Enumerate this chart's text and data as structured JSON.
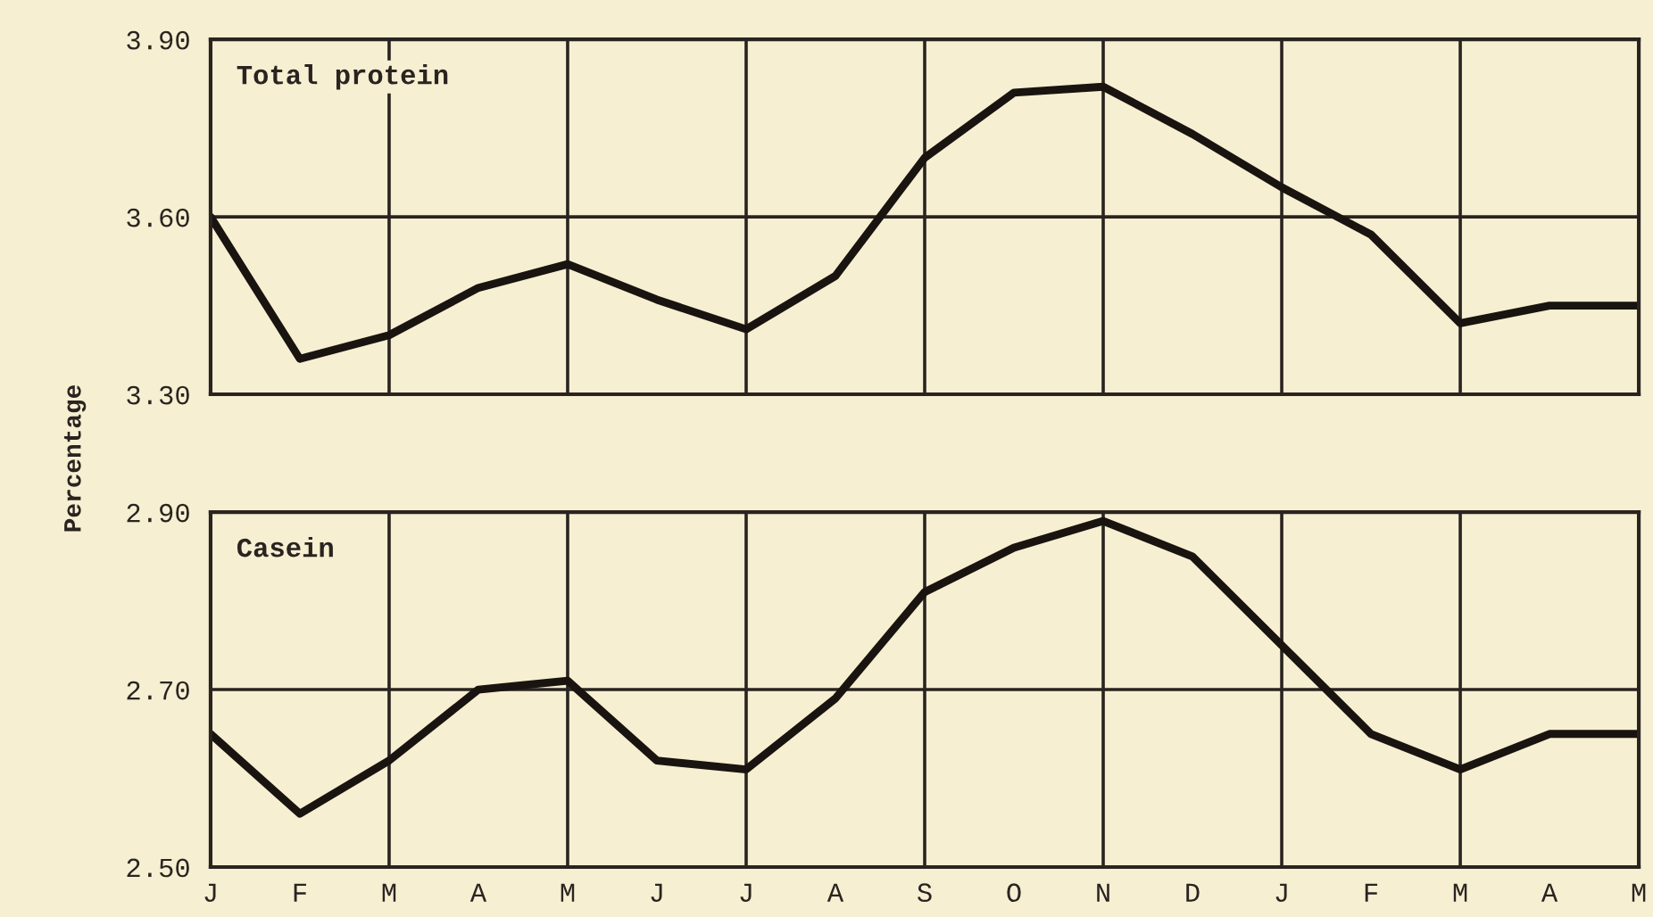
{
  "chart_data": [
    {
      "type": "line",
      "title": "Total protein",
      "categories": [
        null,
        null,
        null,
        null,
        null,
        null,
        null,
        null,
        null,
        null,
        null,
        null,
        null,
        null,
        null,
        null,
        null
      ],
      "series": [
        {
          "color": "#1a1410",
          "values": [
            3.6,
            3.36,
            3.4,
            3.48,
            3.52,
            3.46,
            3.41,
            3.5,
            3.7,
            3.81,
            3.82,
            3.74,
            3.65,
            3.57,
            3.42,
            3.45,
            3.45
          ]
        }
      ],
      "ylim": [
        3.3,
        3.9
      ],
      "yticks": [
        {
          "value": 3.3,
          "label": "3.30"
        },
        {
          "value": 3.6,
          "label": "3.60"
        },
        {
          "value": 3.9,
          "label": "3.90"
        }
      ],
      "grid": true,
      "tick_labels": "y",
      "marker": "none",
      "line_style": "solid"
    },
    {
      "type": "line",
      "title": "Casein",
      "ylabel": "Percentage",
      "categories": [
        "J",
        "F",
        "M",
        "A",
        "M",
        "J",
        "J",
        "A",
        "S",
        "O",
        "N",
        "D",
        "J",
        "F",
        "M",
        "A",
        "M"
      ],
      "series": [
        {
          "color": "#1a1410",
          "values": [
            2.65,
            2.56,
            2.62,
            2.7,
            2.71,
            2.62,
            2.61,
            2.69,
            2.81,
            2.86,
            2.89,
            2.85,
            2.75,
            2.65,
            2.61,
            2.65,
            2.65
          ]
        }
      ],
      "ylim": [
        2.5,
        2.9
      ],
      "yticks": [
        {
          "value": 2.5,
          "label": "2.50"
        },
        {
          "value": 2.7,
          "label": "2.70"
        },
        {
          "value": 2.9,
          "label": "2.90"
        }
      ],
      "grid": true,
      "marker": "none",
      "line_style": "solid"
    }
  ]
}
